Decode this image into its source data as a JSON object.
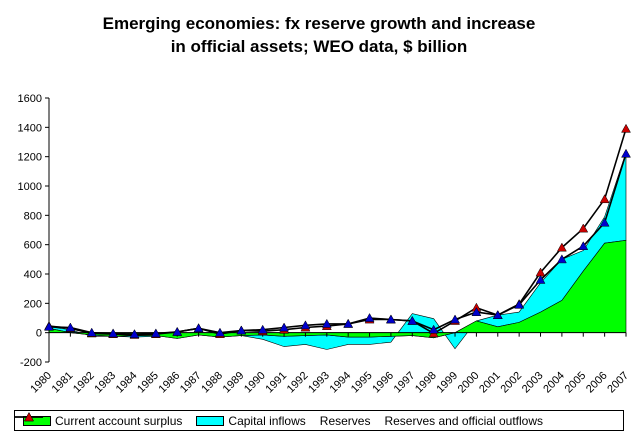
{
  "chart_data": {
    "type": "area",
    "title_line1": "Emerging economies: fx reserve growth and increase",
    "title_line2": "in official assets; WEO data, $ billion",
    "categories": [
      "1980",
      "1981",
      "1982",
      "1983",
      "1984",
      "1985",
      "1986",
      "1987",
      "1988",
      "1989",
      "1990",
      "1991",
      "1992",
      "1993",
      "1994",
      "1995",
      "1996",
      "1997",
      "1998",
      "1999",
      "2000",
      "2001",
      "2002",
      "2003",
      "2004",
      "2005",
      "2006",
      "2007"
    ],
    "ylim": [
      -200,
      1600
    ],
    "yticks": [
      -200,
      0,
      200,
      400,
      600,
      800,
      1000,
      1200,
      1400,
      1600
    ],
    "series": [
      {
        "name": "Current account surplus",
        "kind": "area",
        "color": "#00ff00",
        "values": [
          30,
          0,
          -15,
          -25,
          -20,
          -20,
          -40,
          -15,
          -30,
          -20,
          -15,
          -25,
          -20,
          -15,
          -30,
          -30,
          -25,
          -20,
          -35,
          0,
          80,
          40,
          70,
          140,
          220,
          420,
          610,
          630
        ]
      },
      {
        "name": "Capital inflows",
        "kind": "area",
        "color": "#00ffff",
        "values": [
          10,
          20,
          -10,
          0,
          -10,
          -5,
          20,
          15,
          10,
          0,
          -30,
          -70,
          -60,
          -100,
          -50,
          -50,
          -40,
          150,
          130,
          -110,
          0,
          80,
          70,
          200,
          280,
          140,
          180,
          600
        ]
      },
      {
        "name": "Reserves",
        "kind": "line",
        "color": "#0000cc",
        "marker": "triangle",
        "values": [
          40,
          35,
          0,
          -5,
          -10,
          -5,
          5,
          30,
          0,
          15,
          20,
          35,
          50,
          60,
          60,
          100,
          90,
          80,
          20,
          90,
          140,
          120,
          190,
          360,
          500,
          590,
          750,
          1220
        ]
      },
      {
        "name": "Reserves and official outflows",
        "kind": "line",
        "color": "#cc0000",
        "marker": "triangle",
        "values": [
          45,
          30,
          -5,
          -10,
          -15,
          -10,
          5,
          30,
          -10,
          15,
          10,
          20,
          35,
          45,
          60,
          90,
          90,
          80,
          -5,
          80,
          170,
          120,
          195,
          410,
          580,
          710,
          910,
          1390
        ]
      }
    ]
  }
}
